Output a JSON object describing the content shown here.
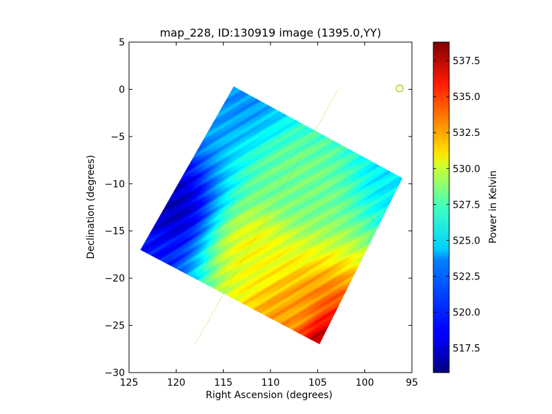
{
  "chart_data": {
    "type": "heatmap",
    "title": "map_228, ID:130919 image (1395.0,YY)",
    "xlabel": "Right Ascension (degrees)",
    "ylabel": "Declination (degrees)",
    "xlim": [
      125,
      95
    ],
    "ylim": [
      -30,
      5
    ],
    "x_ticks": [
      125,
      120,
      115,
      110,
      105,
      100,
      95
    ],
    "y_ticks": [
      5,
      0,
      -5,
      -10,
      -15,
      -20,
      -25,
      -30
    ],
    "x_tick_labels": [
      "125",
      "120",
      "115",
      "110",
      "105",
      "100",
      "95"
    ],
    "y_tick_labels": [
      "5",
      "0",
      "−5",
      "−10",
      "−15",
      "−20",
      "−25",
      "−30"
    ],
    "colorbar": {
      "label": "Power in Kelvin",
      "range": [
        515.8,
        538.8
      ],
      "ticks": [
        517.5,
        520.0,
        522.5,
        525.0,
        527.5,
        530.0,
        532.5,
        535.0,
        537.5
      ],
      "tick_labels": [
        "517.5",
        "520.0",
        "522.5",
        "525.0",
        "527.5",
        "530.0",
        "532.5",
        "535.0",
        "537.5"
      ],
      "colormap": "jet"
    },
    "map_footprint_corners": [
      {
        "ra": 113.9,
        "dec": 0.3
      },
      {
        "ra": 96.0,
        "dec": -9.4
      },
      {
        "ra": 104.8,
        "dec": -27.0
      },
      {
        "ra": 123.8,
        "dec": -17.0
      }
    ],
    "value_features": [
      {
        "ra": 113.9,
        "dec": 0.3,
        "value": 522.0
      },
      {
        "ra": 96.0,
        "dec": -9.4,
        "value": 524.0
      },
      {
        "ra": 104.8,
        "dec": -27.0,
        "value": 538.0
      },
      {
        "ra": 123.8,
        "dec": -17.0,
        "value": 519.0
      },
      {
        "ra": 121.0,
        "dec": -12.5,
        "value": 517.0
      },
      {
        "ra": 111.8,
        "dec": -17.2,
        "value": 530.0
      },
      {
        "ra": 107.0,
        "dec": -10.5,
        "value": 527.0
      },
      {
        "ra": 107.5,
        "dec": -24.0,
        "value": 532.0
      }
    ],
    "overlay_line": {
      "style": "dotted",
      "color": "#bfbf00",
      "points": [
        {
          "ra": 102.8,
          "dec": 0.0
        },
        {
          "ra": 118.0,
          "dec": -27.0
        }
      ]
    },
    "overlay_marker": {
      "shape": "circle",
      "color": "#bfbf00",
      "ra": 96.3,
      "dec": 0.1
    }
  }
}
